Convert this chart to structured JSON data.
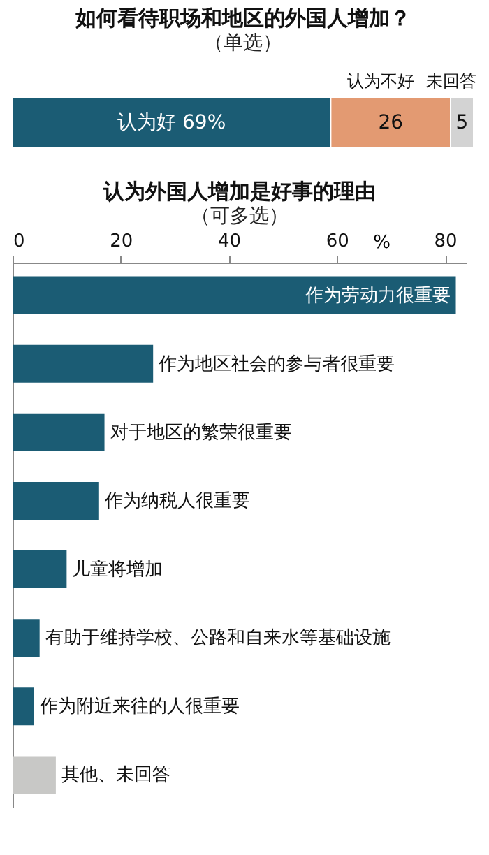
{
  "chart_data": [
    {
      "type": "bar",
      "title": "如何看待职场和地区的外国人增加？",
      "subtitle": "（单选）",
      "orientation": "horizontal",
      "stacked": true,
      "categories": [
        null
      ],
      "tick_labels": false,
      "series": [
        {
          "name": "认为好",
          "color": "#1b5c74",
          "values": [
            69
          ],
          "value_labels": [
            "69%"
          ]
        },
        {
          "name": "认为不好",
          "color": "#e39a72",
          "values": [
            26
          ],
          "value_labels": [
            "26"
          ]
        },
        {
          "name": "未回答",
          "color": "#d3d3d3",
          "values": [
            5
          ],
          "value_labels": [
            "5"
          ]
        }
      ]
    },
    {
      "type": "bar",
      "title": "认为外国人增加是好事的理由",
      "subtitle": "（可多选）",
      "orientation": "horizontal",
      "tick_labels": "x",
      "grid": false,
      "xlabel": "%",
      "categories": [
        "作为劳动力很重要",
        "作为地区社会的参与者很重要",
        "对于地区的繁荣很重要",
        "作为纳税人很重要",
        "儿童将增加",
        "有助于维持学校、公路和自来水等基础设施",
        "作为附近来往的人很重要",
        "其他、未回答"
      ],
      "values": [
        82,
        26,
        17,
        16,
        10,
        5,
        4,
        8
      ],
      "colors": [
        "#1b5c74",
        "#1b5c74",
        "#1b5c74",
        "#1b5c74",
        "#1b5c74",
        "#1b5c74",
        "#1b5c74",
        "#c8c8c6"
      ],
      "xlim": [
        0,
        84
      ],
      "xticks": [
        0,
        20,
        40,
        60,
        80
      ]
    }
  ]
}
